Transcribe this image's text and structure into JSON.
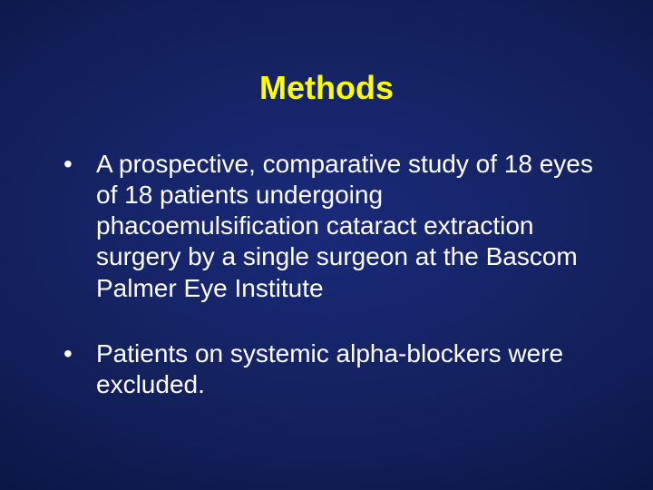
{
  "slide": {
    "title": "Methods",
    "bullets": [
      {
        "text": "A prospective, comparative study of 18 eyes of 18 patients undergoing phacoemulsification cataract extraction surgery by a single surgeon at the Bascom Palmer Eye Institute"
      },
      {
        "text": "Patients on systemic alpha-blockers were excluded."
      }
    ],
    "style": {
      "title_color": "#ffff00",
      "title_fontsize": 36,
      "body_color": "#ffffff",
      "body_fontsize": 28,
      "background_gradient_center": "#1a2a7a",
      "background_gradient_edge": "#040820",
      "bullet_glyph": "•"
    }
  }
}
